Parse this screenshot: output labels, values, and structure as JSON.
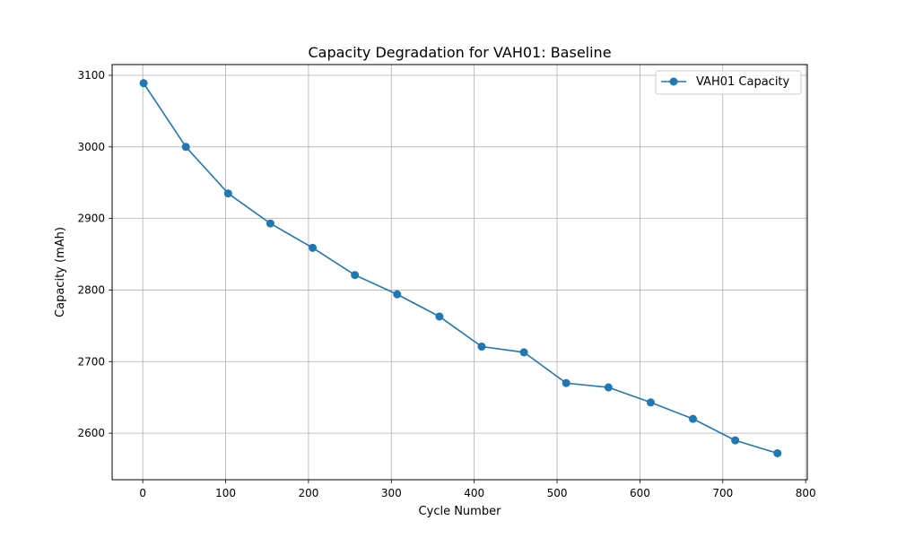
{
  "chart_data": {
    "type": "line",
    "title": "Capacity Degradation for VAH01: Baseline",
    "xlabel": "Cycle Number",
    "ylabel": "Capacity (mAh)",
    "xlim": [
      -37,
      802
    ],
    "ylim": [
      2535,
      3115
    ],
    "xticks": [
      0,
      100,
      200,
      300,
      400,
      500,
      600,
      700,
      800
    ],
    "yticks": [
      2600,
      2700,
      2800,
      2900,
      3000,
      3100
    ],
    "grid": true,
    "legend_position": "top-right",
    "series": [
      {
        "name": "VAH01 Capacity",
        "color": "#1f77b4",
        "marker": "circle",
        "x": [
          1,
          52,
          103,
          154,
          205,
          256,
          307,
          358,
          409,
          460,
          511,
          562,
          613,
          664,
          715,
          766
        ],
        "y": [
          3089,
          3000,
          2935,
          2893,
          2859,
          2821,
          2794,
          2763,
          2721,
          2713,
          2670,
          2664,
          2643,
          2620,
          2590,
          2572
        ]
      }
    ]
  }
}
